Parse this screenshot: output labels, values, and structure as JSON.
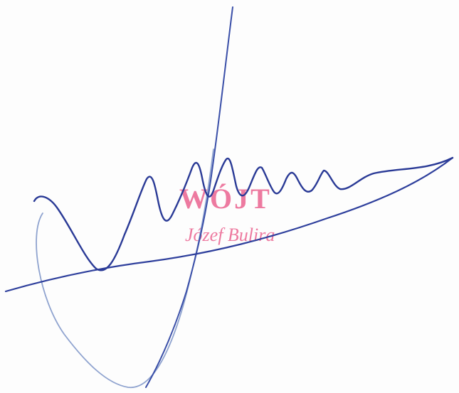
{
  "stamp": {
    "title": "WÓJT",
    "name": "Józef Bulira",
    "color": "#ec6f99"
  },
  "signature": {
    "ink_color": "#2e3f9c",
    "ink_light_color": "#8fa3cf"
  }
}
